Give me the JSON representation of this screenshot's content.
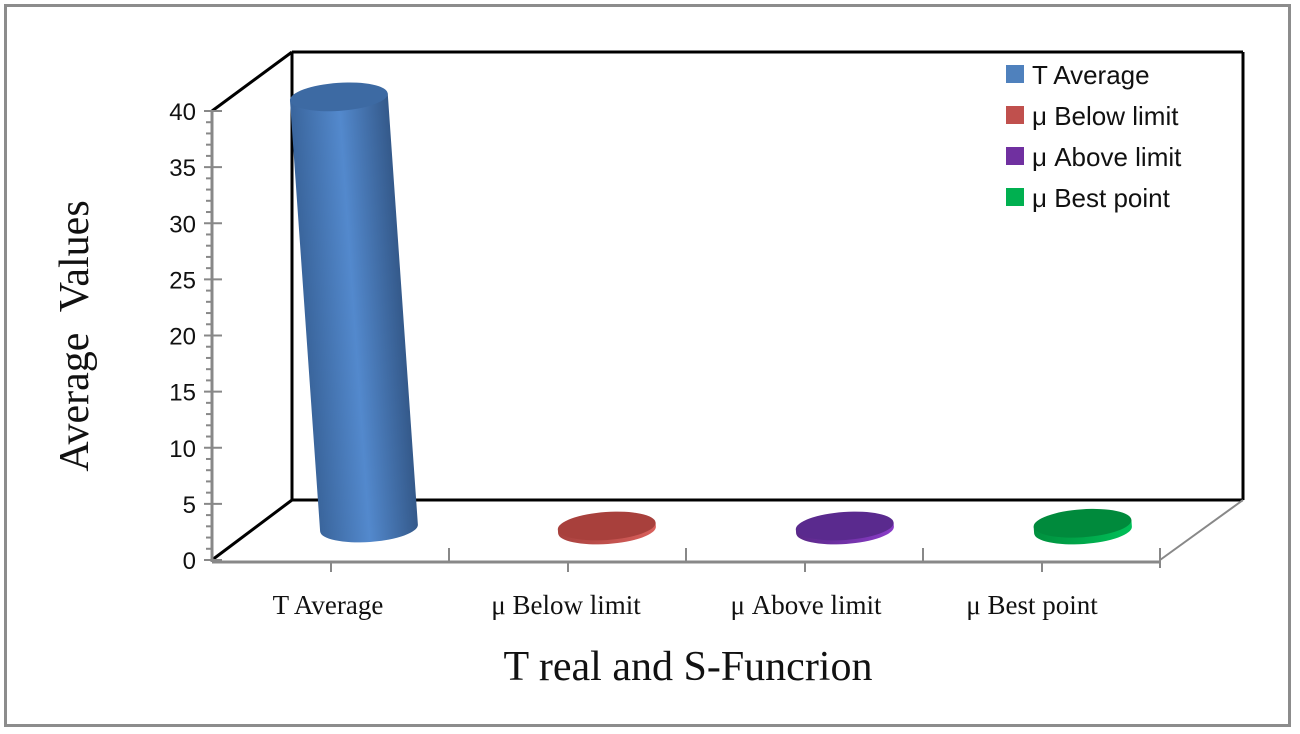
{
  "chart_data": {
    "type": "bar",
    "style": "3d-cylinder",
    "title": "",
    "xlabel": "T real and S-Funcrion",
    "ylabel": "Average  Values",
    "categories": [
      "T Average",
      "μ Below limit",
      "μ Above limit",
      "μ Best point"
    ],
    "values": [
      38.5,
      0.3,
      0.3,
      0.6
    ],
    "colors": [
      "#4f81bd",
      "#c0504d",
      "#7030a0",
      "#00b050"
    ],
    "ylim": [
      0,
      40
    ],
    "yticks": [
      "0",
      "5",
      "10",
      "15",
      "20",
      "25",
      "30",
      "35",
      "40"
    ],
    "grid": false,
    "legend": {
      "position": "top-right",
      "entries": [
        {
          "label": "T Average",
          "color": "#4f81bd"
        },
        {
          "label": "μ Below limit",
          "color": "#c0504d"
        },
        {
          "label": "μ Above limit",
          "color": "#7030a0"
        },
        {
          "label": "μ Best point",
          "color": "#00b050"
        }
      ]
    }
  }
}
